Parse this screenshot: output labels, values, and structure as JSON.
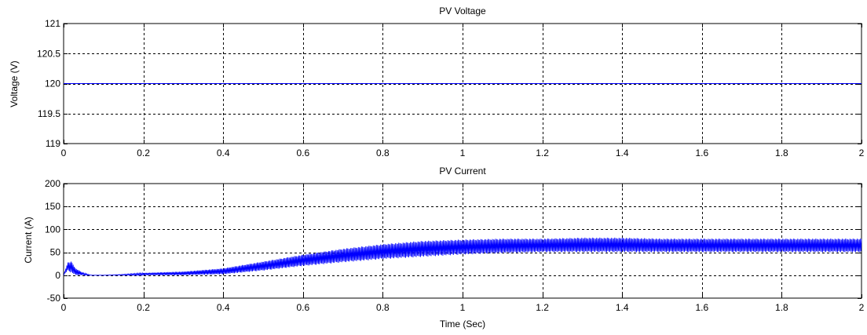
{
  "chart_data": [
    {
      "type": "line",
      "title": "PV Voltage",
      "xlabel": "",
      "ylabel": "Voltage (V)",
      "xlim": [
        0,
        2
      ],
      "ylim": [
        119,
        121
      ],
      "xticks": [
        0,
        0.2,
        0.4,
        0.6,
        0.8,
        1,
        1.2,
        1.4,
        1.6,
        1.8,
        2
      ],
      "xtick_labels": [
        "0",
        "0.2",
        "0.4",
        "0.6",
        "0.8",
        "1",
        "1.2",
        "1.4",
        "1.6",
        "1.8",
        "2"
      ],
      "yticks": [
        119,
        119.5,
        120,
        120.5,
        121
      ],
      "ytick_labels": [
        "119",
        "119.5",
        "120",
        "120.5",
        "121"
      ],
      "grid": true,
      "series": [
        {
          "color": "#0000ff",
          "x": [
            0,
            2
          ],
          "y": [
            120,
            120
          ]
        }
      ]
    },
    {
      "type": "line",
      "title": "PV Current",
      "xlabel": "Time (Sec)",
      "ylabel": "Current (A)",
      "xlim": [
        0,
        2
      ],
      "ylim": [
        -50,
        200
      ],
      "xticks": [
        0,
        0.2,
        0.4,
        0.6,
        0.8,
        1,
        1.2,
        1.4,
        1.6,
        1.8,
        2
      ],
      "xtick_labels": [
        "0",
        "0.2",
        "0.4",
        "0.6",
        "0.8",
        "1",
        "1.2",
        "1.4",
        "1.6",
        "1.8",
        "2"
      ],
      "yticks": [
        -50,
        0,
        50,
        100,
        150,
        200
      ],
      "ytick_labels": [
        "-50",
        "0",
        "50",
        "100",
        "150",
        "200"
      ],
      "grid": true,
      "series": [
        {
          "color": "#0000ff",
          "style": "oscillating band",
          "envelope": {
            "x": [
              0,
              0.01,
              0.02,
              0.03,
              0.05,
              0.07,
              0.1,
              0.15,
              0.2,
              0.3,
              0.4,
              0.5,
              0.6,
              0.7,
              0.8,
              0.9,
              1.0,
              1.1,
              1.2,
              1.3,
              1.4,
              1.5,
              1.6,
              1.8,
              2.0
            ],
            "lower": [
              0,
              10,
              5,
              0,
              0,
              0,
              0,
              0,
              0,
              0,
              2,
              10,
              20,
              28,
              35,
              40,
              45,
              48,
              50,
              50,
              50,
              50,
              50,
              50,
              50
            ],
            "upper": [
              0,
              28,
              30,
              15,
              5,
              0,
              0,
              2,
              5,
              8,
              15,
              30,
              45,
              58,
              68,
              75,
              78,
              80,
              80,
              82,
              82,
              80,
              80,
              80,
              80
            ]
          }
        }
      ]
    }
  ]
}
